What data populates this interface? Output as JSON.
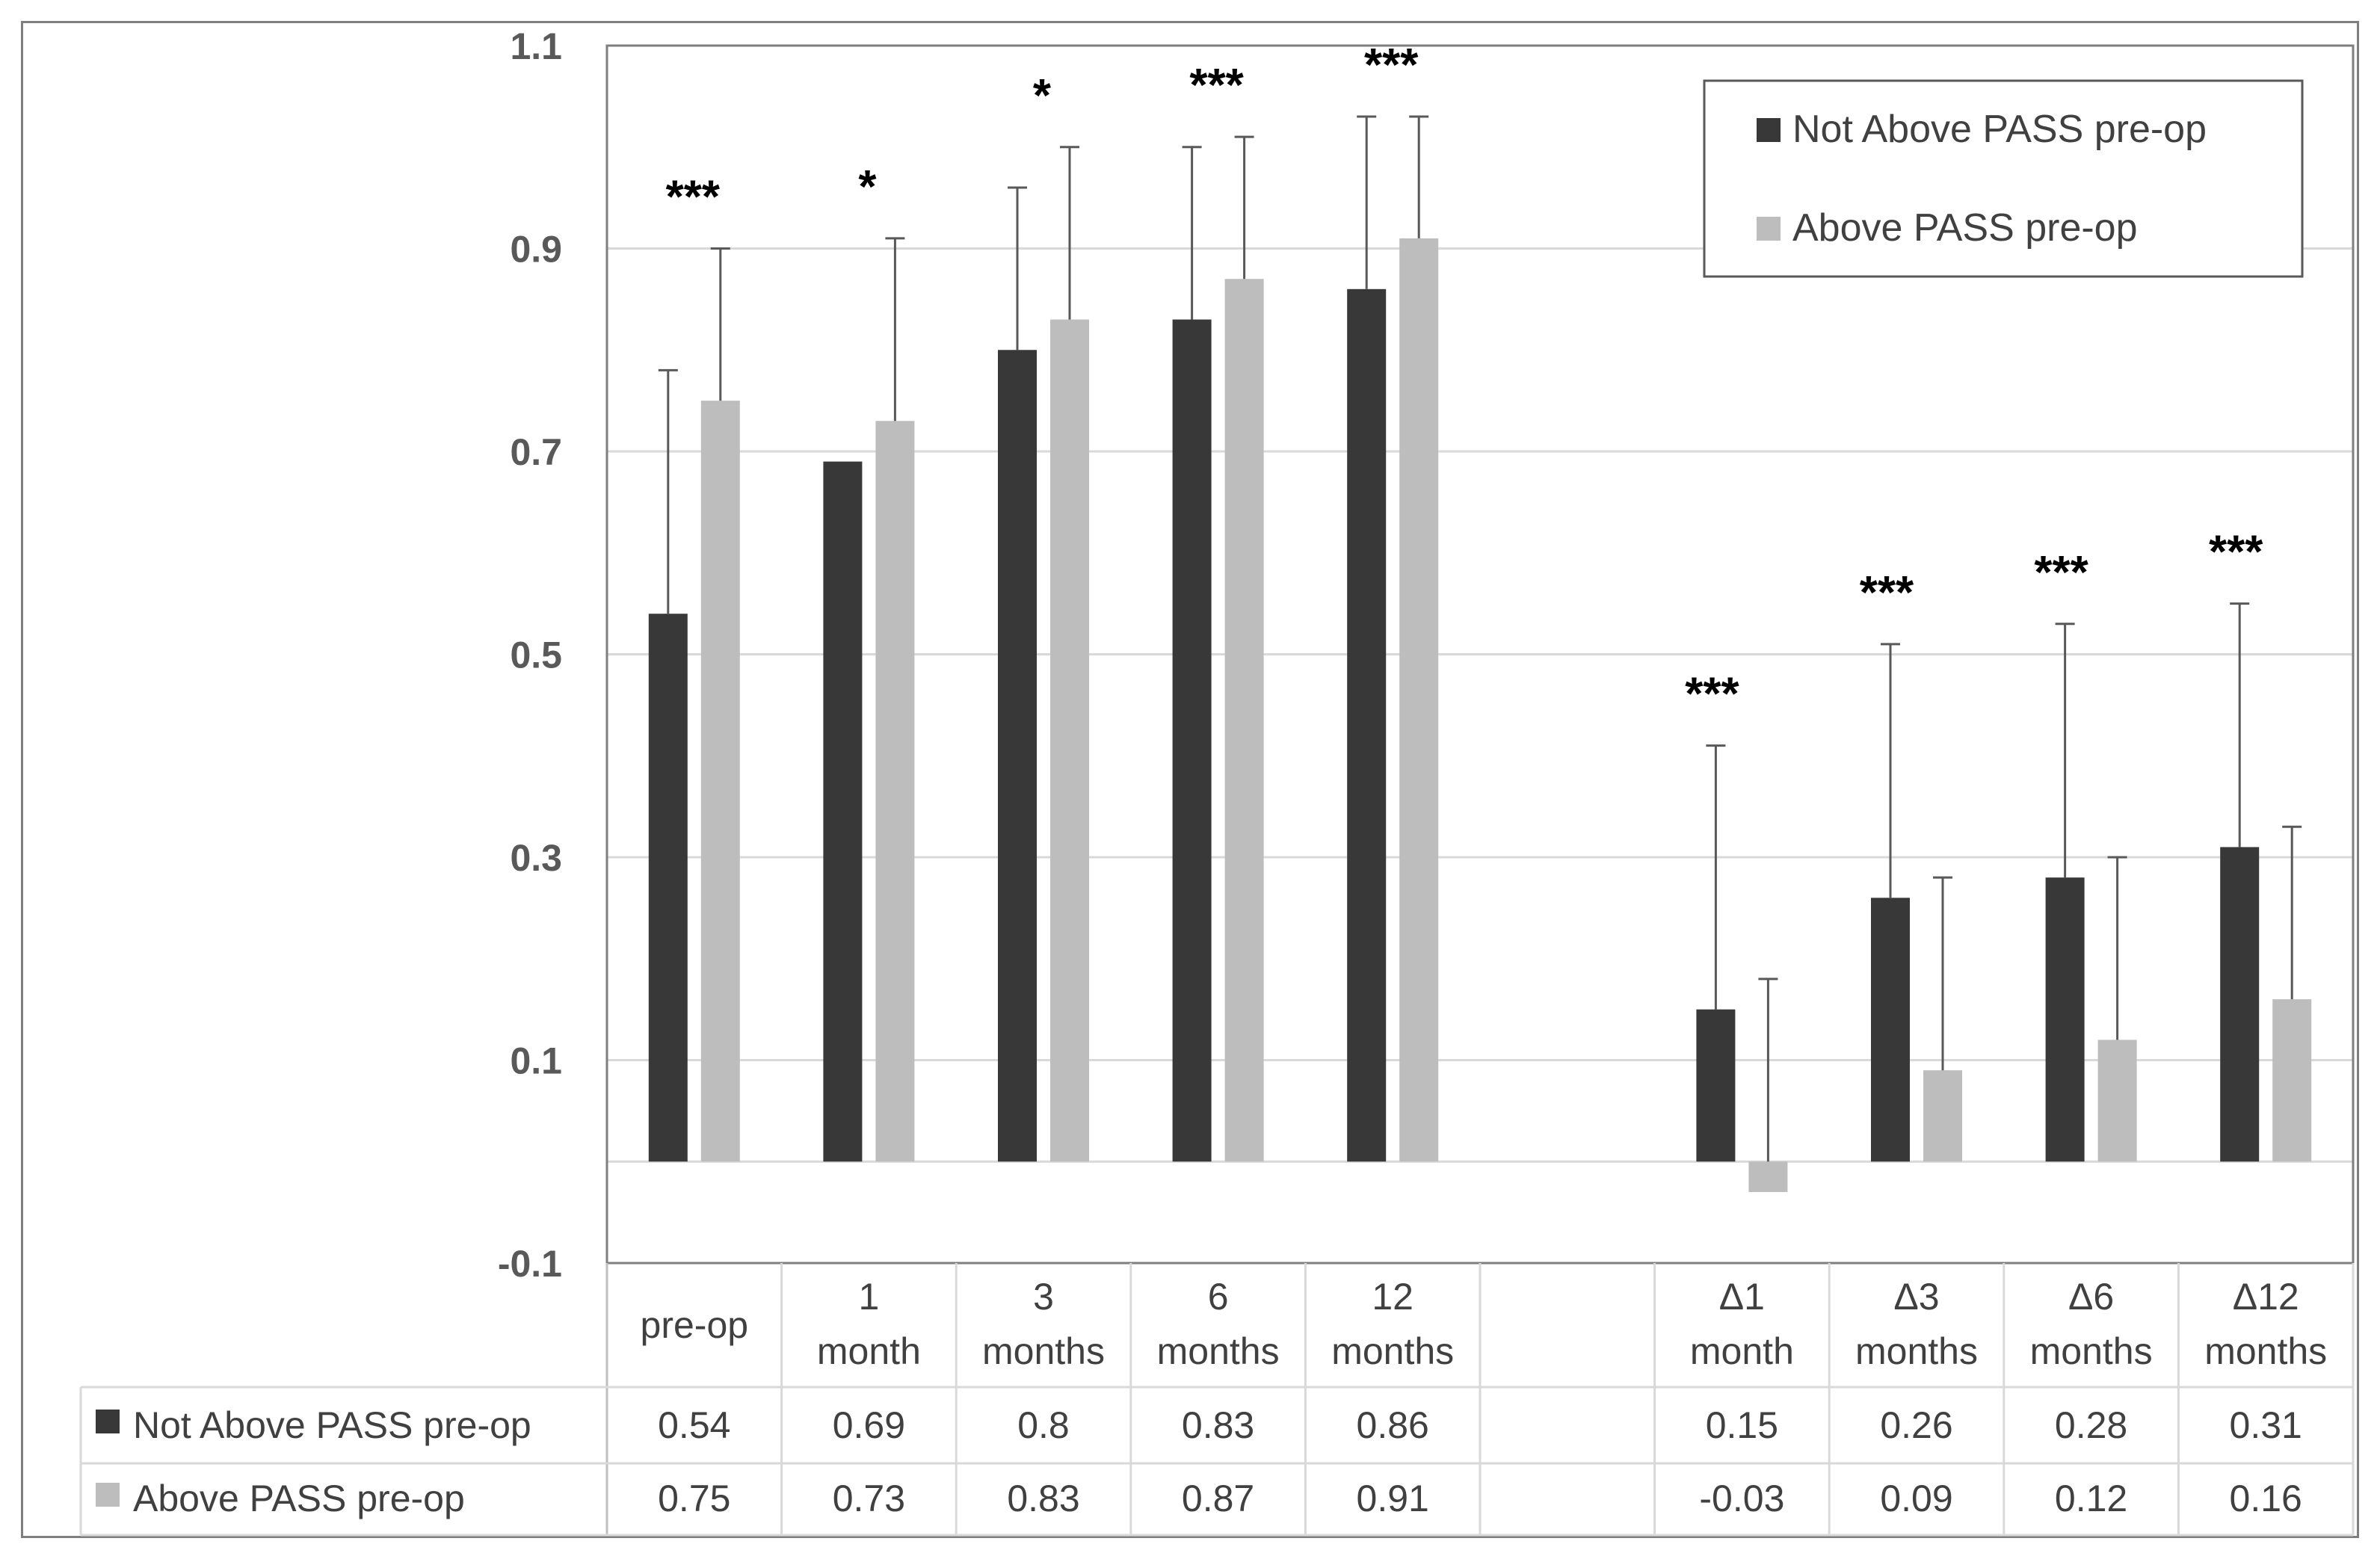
{
  "chart_data": {
    "type": "bar",
    "title": "",
    "xlabel": "",
    "ylabel": "",
    "ylim": [
      -0.1,
      1.1
    ],
    "yticks": [
      "1.1",
      "0.9",
      "0.7",
      "0.5",
      "0.3",
      "0.1",
      "-0.1"
    ],
    "ytick_values": [
      1.1,
      0.9,
      0.7,
      0.5,
      0.3,
      0.1,
      -0.1
    ],
    "categories": [
      {
        "line1": "pre-op",
        "line2": ""
      },
      {
        "line1": "1",
        "line2": "month"
      },
      {
        "line1": "3",
        "line2": "months"
      },
      {
        "line1": "6",
        "line2": "months"
      },
      {
        "line1": "12",
        "line2": "months"
      },
      {
        "line1": "",
        "line2": ""
      },
      {
        "line1": "Δ1",
        "line2": "month"
      },
      {
        "line1": "Δ3",
        "line2": "months"
      },
      {
        "line1": "Δ6",
        "line2": "months"
      },
      {
        "line1": "Δ12",
        "line2": "months"
      }
    ],
    "series": [
      {
        "name": "Not Above PASS pre-op",
        "color": "#383838",
        "values": [
          0.54,
          0.69,
          0.8,
          0.83,
          0.86,
          null,
          0.15,
          0.26,
          0.28,
          0.31
        ],
        "labels": [
          "0.54",
          "0.69",
          "0.8",
          "0.83",
          "0.86",
          "",
          "0.15",
          "0.26",
          "0.28",
          "0.31"
        ],
        "error_upper": [
          0.78,
          null,
          0.96,
          1.0,
          1.03,
          null,
          0.41,
          0.51,
          0.53,
          0.55
        ]
      },
      {
        "name": "Above PASS pre-op",
        "color": "#bdbdbd",
        "values": [
          0.75,
          0.73,
          0.83,
          0.87,
          0.91,
          null,
          -0.03,
          0.09,
          0.12,
          0.16
        ],
        "labels": [
          "0.75",
          "0.73",
          "0.83",
          "0.87",
          "0.91",
          "",
          "-0.03",
          "0.09",
          "0.12",
          "0.16"
        ],
        "error_upper": [
          0.9,
          0.91,
          1.0,
          1.01,
          1.03,
          null,
          0.18,
          0.28,
          0.3,
          0.33
        ]
      }
    ],
    "significance": [
      "***",
      "*",
      "*",
      "***",
      "***",
      "",
      "***",
      "***",
      "***",
      "***"
    ],
    "legend": {
      "position": "top-right",
      "items": [
        "Not Above PASS pre-op",
        "Above PASS pre-op"
      ]
    },
    "data_table": true,
    "grid": true
  }
}
